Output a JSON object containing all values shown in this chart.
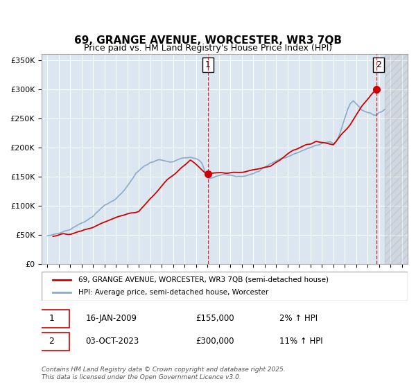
{
  "title": "69, GRANGE AVENUE, WORCESTER, WR3 7QB",
  "subtitle": "Price paid vs. HM Land Registry's House Price Index (HPI)",
  "bg_color": "#cdd8e8",
  "plot_bg_color": "#dce6f0",
  "hatch_region_start": 2024.5,
  "hatch_region_end": 2026.5,
  "vline1_x": 2009.04,
  "vline2_x": 2023.75,
  "marker1_x": 2009.04,
  "marker1_y": 155000,
  "marker2_x": 2023.75,
  "marker2_y": 300000,
  "ylim": [
    0,
    360000
  ],
  "xlim": [
    1994.5,
    2026.5
  ],
  "yticks": [
    0,
    50000,
    100000,
    150000,
    200000,
    250000,
    300000,
    350000
  ],
  "ytick_labels": [
    "£0",
    "£50K",
    "£100K",
    "£150K",
    "£200K",
    "£250K",
    "£300K",
    "£350K"
  ],
  "xticks": [
    1995,
    1996,
    1997,
    1998,
    1999,
    2000,
    2001,
    2002,
    2003,
    2004,
    2005,
    2006,
    2007,
    2008,
    2009,
    2010,
    2011,
    2012,
    2013,
    2014,
    2015,
    2016,
    2017,
    2018,
    2019,
    2020,
    2021,
    2022,
    2023,
    2024,
    2025,
    2026
  ],
  "legend_label1": "69, GRANGE AVENUE, WORCESTER, WR3 7QB (semi-detached house)",
  "legend_label2": "HPI: Average price, semi-detached house, Worcester",
  "line1_color": "#cc0000",
  "line2_color": "#88aacc",
  "annotation1_label": "1",
  "annotation2_label": "2",
  "note1_num": "1",
  "note1_date": "16-JAN-2009",
  "note1_price": "£155,000",
  "note1_hpi": "2% ↑ HPI",
  "note2_num": "2",
  "note2_date": "03-OCT-2023",
  "note2_price": "£300,000",
  "note2_hpi": "11% ↑ HPI",
  "footer": "Contains HM Land Registry data © Crown copyright and database right 2025.\nThis data is licensed under the Open Government Licence v3.0.",
  "hpi_x": [
    1995.0,
    1995.25,
    1995.5,
    1995.75,
    1996.0,
    1996.25,
    1996.5,
    1996.75,
    1997.0,
    1997.25,
    1997.5,
    1997.75,
    1998.0,
    1998.25,
    1998.5,
    1998.75,
    1999.0,
    1999.25,
    1999.5,
    1999.75,
    2000.0,
    2000.25,
    2000.5,
    2000.75,
    2001.0,
    2001.25,
    2001.5,
    2001.75,
    2002.0,
    2002.25,
    2002.5,
    2002.75,
    2003.0,
    2003.25,
    2003.5,
    2003.75,
    2004.0,
    2004.25,
    2004.5,
    2004.75,
    2005.0,
    2005.25,
    2005.5,
    2005.75,
    2006.0,
    2006.25,
    2006.5,
    2006.75,
    2007.0,
    2007.25,
    2007.5,
    2007.75,
    2008.0,
    2008.25,
    2008.5,
    2008.75,
    2009.0,
    2009.25,
    2009.5,
    2009.75,
    2010.0,
    2010.25,
    2010.5,
    2010.75,
    2011.0,
    2011.25,
    2011.5,
    2011.75,
    2012.0,
    2012.25,
    2012.5,
    2012.75,
    2013.0,
    2013.25,
    2013.5,
    2013.75,
    2014.0,
    2014.25,
    2014.5,
    2014.75,
    2015.0,
    2015.25,
    2015.5,
    2015.75,
    2016.0,
    2016.25,
    2016.5,
    2016.75,
    2017.0,
    2017.25,
    2017.5,
    2017.75,
    2018.0,
    2018.25,
    2018.5,
    2018.75,
    2019.0,
    2019.25,
    2019.5,
    2019.75,
    2020.0,
    2020.25,
    2020.5,
    2020.75,
    2021.0,
    2021.25,
    2021.5,
    2021.75,
    2022.0,
    2022.25,
    2022.5,
    2022.75,
    2023.0,
    2023.25,
    2023.5,
    2023.75,
    2024.0,
    2024.25,
    2024.5
  ],
  "hpi_y": [
    48000,
    49000,
    50000,
    51000,
    52500,
    54000,
    55500,
    57000,
    59000,
    62000,
    65000,
    68000,
    70000,
    73000,
    76000,
    79000,
    82000,
    87000,
    92000,
    97000,
    100000,
    103000,
    106000,
    109000,
    112000,
    117000,
    122000,
    127000,
    134000,
    141000,
    148000,
    155000,
    160000,
    165000,
    168000,
    171000,
    174000,
    176000,
    178000,
    179000,
    178000,
    177000,
    176000,
    175000,
    176000,
    178000,
    180000,
    181000,
    182000,
    183000,
    183000,
    182000,
    181000,
    178000,
    173000,
    160000,
    148000,
    147000,
    148000,
    150000,
    152000,
    153000,
    154000,
    153000,
    152000,
    151000,
    150000,
    150000,
    150000,
    151000,
    152000,
    153000,
    155000,
    157000,
    160000,
    163000,
    166000,
    169000,
    172000,
    175000,
    177000,
    179000,
    181000,
    182000,
    184000,
    186000,
    188000,
    190000,
    192000,
    194000,
    196000,
    198000,
    200000,
    202000,
    204000,
    205000,
    207000,
    208000,
    209000,
    210000,
    207000,
    210000,
    220000,
    235000,
    250000,
    265000,
    275000,
    280000,
    275000,
    270000,
    265000,
    262000,
    260000,
    258000,
    256000,
    255000,
    260000,
    262000,
    265000
  ],
  "price_x": [
    1995.5,
    1998.0,
    2001.0,
    2003.0,
    2005.5,
    2007.5,
    2009.04,
    2012.0,
    2014.5,
    2016.5,
    2018.5,
    2020.0,
    2021.5,
    2022.5,
    2023.75
  ],
  "price_y": [
    48000,
    55000,
    80000,
    90000,
    145000,
    178000,
    155000,
    158000,
    168000,
    195000,
    210000,
    205000,
    240000,
    270000,
    300000
  ]
}
